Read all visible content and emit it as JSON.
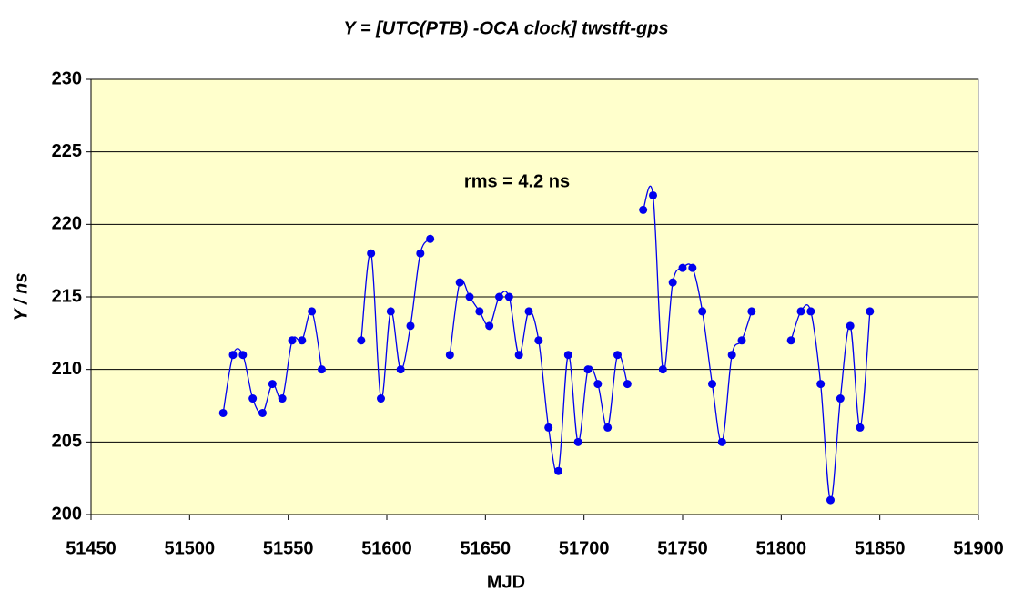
{
  "chart_data": {
    "type": "line",
    "title": "Y = [UTC(PTB) -OCA clock] twstft-gps",
    "xlabel": "MJD",
    "ylabel": "Y / ns",
    "annotation": "rms =  4.2 ns",
    "x": [
      51517,
      51522,
      51527,
      51532,
      51537,
      51542,
      51547,
      51552,
      51557,
      51562,
      51567,
      null,
      51587,
      51592,
      51597,
      51602,
      51607,
      51612,
      51617,
      51622,
      null,
      51632,
      51637,
      51642,
      51647,
      51652,
      51657,
      51662,
      51667,
      51672,
      51677,
      51682,
      51687,
      51692,
      51697,
      51702,
      51707,
      51712,
      51717,
      51722,
      null,
      51730,
      51735,
      51740,
      51745,
      51750,
      51755,
      51760,
      51765,
      51770,
      51775,
      51780,
      51785,
      null,
      51805,
      51810,
      51815,
      51820,
      51825,
      51830,
      51835,
      51840,
      51845
    ],
    "series": [
      {
        "name": "Y",
        "color": "#0000ee",
        "values": [
          207,
          211,
          211,
          208,
          207,
          209,
          208,
          212,
          212,
          214,
          210,
          null,
          212,
          218,
          208,
          214,
          210,
          213,
          218,
          219,
          null,
          211,
          216,
          215,
          214,
          213,
          215,
          215,
          211,
          214,
          212,
          206,
          203,
          211,
          205,
          210,
          209,
          206,
          211,
          209,
          null,
          221,
          222,
          210,
          216,
          217,
          217,
          214,
          209,
          205,
          211,
          212,
          214,
          null,
          212,
          214,
          214,
          209,
          201,
          208,
          213,
          206,
          214
        ]
      }
    ],
    "xlim": [
      51450,
      51900
    ],
    "xticks": [
      51450,
      51500,
      51550,
      51600,
      51650,
      51700,
      51750,
      51800,
      51850,
      51900
    ],
    "ylim": [
      200,
      230
    ],
    "yticks": [
      200,
      205,
      210,
      215,
      220,
      225,
      230
    ],
    "grid": true
  }
}
